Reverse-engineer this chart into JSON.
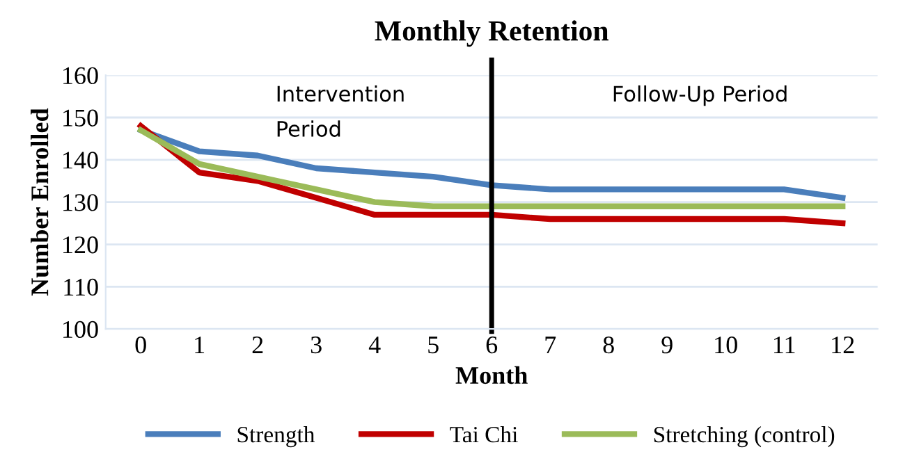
{
  "chart_data": {
    "type": "line",
    "title": "Monthly Retention",
    "xlabel": "Month",
    "ylabel": "Number Enrolled",
    "x": [
      0,
      1,
      2,
      3,
      4,
      5,
      6,
      7,
      8,
      9,
      10,
      11,
      12
    ],
    "series": [
      {
        "name": "Strength",
        "color": "#4a7ebb",
        "values": [
          147,
          142,
          141,
          138,
          137,
          136,
          134,
          133,
          133,
          133,
          133,
          133,
          131
        ]
      },
      {
        "name": "Tai Chi",
        "color": "#c00000",
        "values": [
          148,
          137,
          135,
          131,
          127,
          127,
          127,
          126,
          126,
          126,
          126,
          126,
          125
        ]
      },
      {
        "name": "Stretching (control)",
        "color": "#9bbb59",
        "values": [
          147,
          139,
          136,
          133,
          130,
          129,
          129,
          129,
          129,
          129,
          129,
          129,
          129
        ]
      }
    ],
    "xlim": [
      -0.6,
      12.6
    ],
    "xticks": [
      0,
      1,
      2,
      3,
      4,
      5,
      6,
      7,
      8,
      9,
      10,
      11,
      12
    ],
    "ylim": [
      100,
      160
    ],
    "yticks": [
      100,
      110,
      120,
      130,
      140,
      150,
      160
    ],
    "ref_lines": [
      {
        "axis": "x",
        "value": 6,
        "color": "#000000"
      }
    ],
    "annotations": [
      "Intervention\nPeriod",
      "Follow-Up Period"
    ],
    "grid": "y",
    "legend": "bottom",
    "marker": "none",
    "line_style": "solid"
  }
}
